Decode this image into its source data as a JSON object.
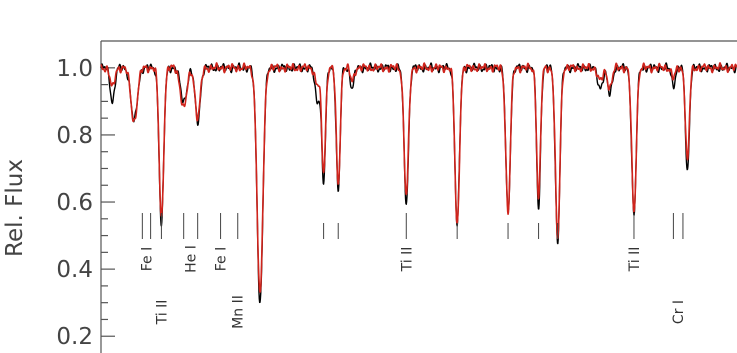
{
  "chart_data": {
    "type": "line",
    "title": "",
    "xlabel": "",
    "ylabel": "Rel. Flux",
    "ylim": [
      0.15,
      1.08
    ],
    "xlim": [
      0,
      100
    ],
    "yticks": [
      "0.2",
      "0.4",
      "0.6",
      "0.8",
      "1.0"
    ],
    "grid": false,
    "series": [
      {
        "color": "#000000",
        "lines": [
          {
            "x": 1.8,
            "depth": 0.1,
            "width": 0.35
          },
          {
            "x": 5.2,
            "depth": 0.16,
            "width": 0.5
          },
          {
            "x": 9.5,
            "depth": 0.47,
            "width": 0.35
          },
          {
            "x": 13.0,
            "depth": 0.1,
            "width": 0.5
          },
          {
            "x": 15.2,
            "depth": 0.16,
            "width": 0.4
          },
          {
            "x": 25.0,
            "depth": 0.7,
            "width": 0.45
          },
          {
            "x": 34.0,
            "depth": 0.1,
            "width": 0.35
          },
          {
            "x": 35.0,
            "depth": 0.34,
            "width": 0.3
          },
          {
            "x": 37.3,
            "depth": 0.37,
            "width": 0.3
          },
          {
            "x": 39.5,
            "depth": 0.06,
            "width": 0.3
          },
          {
            "x": 48.0,
            "depth": 0.4,
            "width": 0.35
          },
          {
            "x": 56.0,
            "depth": 0.47,
            "width": 0.35
          },
          {
            "x": 64.0,
            "depth": 0.43,
            "width": 0.35
          },
          {
            "x": 68.8,
            "depth": 0.42,
            "width": 0.3
          },
          {
            "x": 71.8,
            "depth": 0.52,
            "width": 0.35
          },
          {
            "x": 78.5,
            "depth": 0.06,
            "width": 0.4
          },
          {
            "x": 80.0,
            "depth": 0.08,
            "width": 0.35
          },
          {
            "x": 83.8,
            "depth": 0.44,
            "width": 0.35
          },
          {
            "x": 90.0,
            "depth": 0.05,
            "width": 0.3
          },
          {
            "x": 92.2,
            "depth": 0.31,
            "width": 0.3
          }
        ]
      },
      {
        "color": "#d0241c",
        "lines": [
          {
            "x": 1.8,
            "depth": 0.06,
            "width": 0.35
          },
          {
            "x": 5.2,
            "depth": 0.16,
            "width": 0.5
          },
          {
            "x": 9.5,
            "depth": 0.45,
            "width": 0.35
          },
          {
            "x": 13.0,
            "depth": 0.12,
            "width": 0.5
          },
          {
            "x": 15.2,
            "depth": 0.15,
            "width": 0.4
          },
          {
            "x": 25.0,
            "depth": 0.68,
            "width": 0.45
          },
          {
            "x": 34.0,
            "depth": 0.05,
            "width": 0.35
          },
          {
            "x": 35.0,
            "depth": 0.31,
            "width": 0.3
          },
          {
            "x": 37.3,
            "depth": 0.35,
            "width": 0.3
          },
          {
            "x": 39.5,
            "depth": 0.04,
            "width": 0.3
          },
          {
            "x": 48.0,
            "depth": 0.38,
            "width": 0.35
          },
          {
            "x": 56.0,
            "depth": 0.47,
            "width": 0.35
          },
          {
            "x": 64.0,
            "depth": 0.43,
            "width": 0.35
          },
          {
            "x": 68.8,
            "depth": 0.39,
            "width": 0.3
          },
          {
            "x": 71.8,
            "depth": 0.51,
            "width": 0.35
          },
          {
            "x": 78.5,
            "depth": 0.04,
            "width": 0.4
          },
          {
            "x": 80.0,
            "depth": 0.06,
            "width": 0.35
          },
          {
            "x": 83.8,
            "depth": 0.43,
            "width": 0.35
          },
          {
            "x": 90.0,
            "depth": 0.03,
            "width": 0.3
          },
          {
            "x": 92.2,
            "depth": 0.28,
            "width": 0.3
          }
        ]
      }
    ],
    "line_ids": [
      {
        "label": "Fe I",
        "ticks": [
          6.5,
          7.8
        ],
        "row": "upper"
      },
      {
        "label": "Ti II",
        "ticks": [
          9.5
        ],
        "row": "lower"
      },
      {
        "label": "He I",
        "ticks": [
          13.0,
          15.2
        ],
        "row": "upper"
      },
      {
        "label": "Fe I",
        "ticks": [
          18.8
        ],
        "row": "upper"
      },
      {
        "label": "Mn II",
        "ticks": [
          21.5
        ],
        "row": "lower"
      },
      {
        "label": "Ti II",
        "ticks": [
          48.0
        ],
        "row": "upper"
      },
      {
        "label": "Ti II",
        "ticks": [
          83.8
        ],
        "row": "upper"
      },
      {
        "label": "Cr I",
        "ticks": [
          90.0,
          91.5
        ],
        "row": "lower"
      }
    ],
    "unlabeled_ticks": [
      35.0,
      37.3,
      56.0,
      64.0,
      68.8,
      71.8
    ]
  }
}
